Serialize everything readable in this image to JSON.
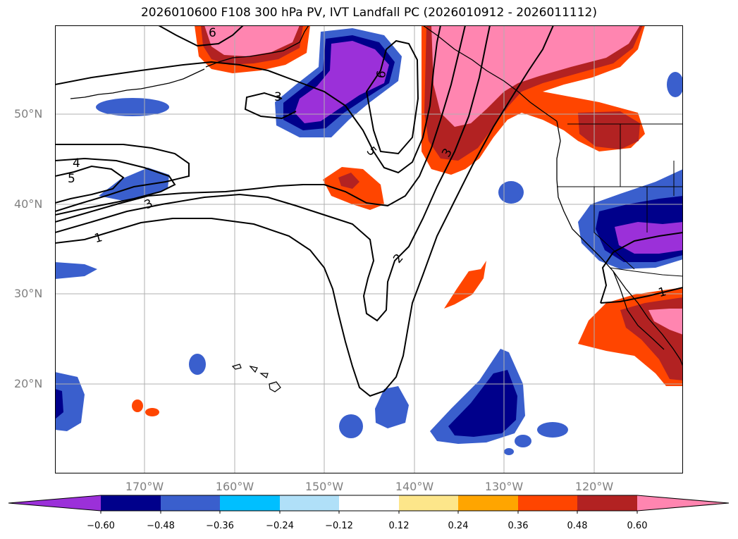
{
  "title": "2026010600 F108 300 hPa PV, IVT Landfall PC (2026010912 - 2026011112)",
  "axes": {
    "lat_labels": [
      "50°N",
      "40°N",
      "30°N",
      "20°N"
    ],
    "lon_labels": [
      "170°W",
      "160°W",
      "150°W",
      "140°W",
      "130°W",
      "120°W"
    ]
  },
  "colorbar": {
    "ticks": [
      "−0.60",
      "−0.48",
      "−0.36",
      "−0.24",
      "−0.12",
      "0.12",
      "0.24",
      "0.36",
      "0.48",
      "0.60"
    ],
    "colors": [
      "#9b30d9",
      "#00008b",
      "#3a5fcd",
      "#00bfff",
      "#b0e0f8",
      "#ffffff",
      "#fde68a",
      "#ffa500",
      "#ff4500",
      "#b22222",
      "#ff85b0"
    ]
  },
  "contour_labels": [
    "6",
    "3",
    "6",
    "5",
    "3",
    "4",
    "5",
    "3",
    "1",
    "2",
    "1"
  ],
  "palette": {
    "purple": "#9b30d9",
    "navy": "#00008b",
    "blue": "#3a5fcd",
    "cyan": "#00bfff",
    "orange": "#ff4500",
    "red": "#b22222",
    "pink": "#ff85b0",
    "gold": "#ffa500"
  }
}
